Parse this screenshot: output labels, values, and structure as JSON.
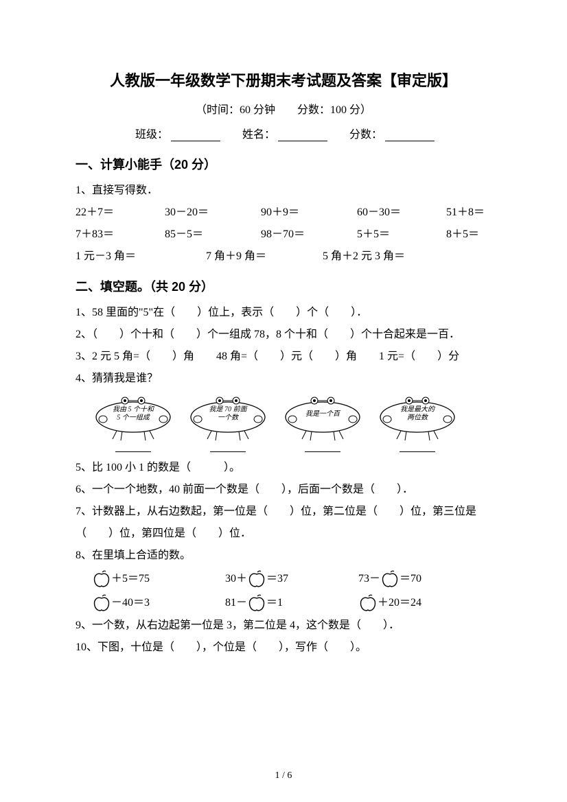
{
  "title": "人教版一年级数学下册期末考试题及答案【审定版】",
  "meta": "（时间：60 分钟　　分数：100 分）",
  "fields": {
    "class_label": "班级：",
    "name_label": "姓名：",
    "score_label": "分数："
  },
  "section1": {
    "header": "一、计算小能手（20 分）",
    "q1_label": "1、直接写得数．",
    "row1": [
      "22＋7＝",
      "30－20＝",
      "90＋9＝",
      "60－30＝",
      "51＋8＝"
    ],
    "row2": [
      "7＋83＝",
      "85－5＝",
      "98－70＝",
      "5＋5＝",
      "8＋5＝"
    ],
    "row3": [
      "1 元－3 角＝",
      "7 角＋9 角＝",
      "5 角＋2 元 3 角＝"
    ]
  },
  "section2": {
    "header": "二、填空题。（共 20 分）",
    "q1": "1、58 里面的\"5\"在（　　）位上，表示（　　）个（　　）．",
    "q2": "2、（　　）个十和（　　）个一组成 78，8 个十和（　　）个十合起来是一百．",
    "q3": "3、2 元 5 角=（　　）角　　48 角=（　　）元（　　）角　　1 元=（　　）分",
    "q4_label": "4、猜猜我是谁？",
    "bubbles": [
      "我由 5 个十和\n5 个一组成",
      "我是 70 前面\n一个数",
      "我是一个百",
      "我是最大的\n两位数"
    ],
    "q5": "5、比 100 小 1 的数是（　　　）。",
    "q6": "6、一个一个地数，40 前面一个数是（　　），后面一个数是（　　）．",
    "q7": "7、计数器上，从右边数起，第一位是（　　）位，第二位是（　　）位，第三位是（　　）位，第四位是（　　）位．",
    "q8_label": "8、在里填上合适的数。",
    "apple_row1": [
      {
        "pre": "",
        "mid": "＋5＝75"
      },
      {
        "pre": "30＋",
        "mid": "＝37"
      },
      {
        "pre": "73－",
        "mid": "＝70"
      }
    ],
    "apple_row2": [
      {
        "pre": "",
        "mid": "－40＝3"
      },
      {
        "pre": "81－",
        "mid": "＝1"
      },
      {
        "pre": "",
        "mid": "＋20＝24"
      }
    ],
    "q9": "9、一个数，从右边起第一位是 3，第二位是 4，这个数是（　　）．",
    "q10": "10、下图，十位是（　　），个位是（　　），写作（　　）。"
  },
  "page_num": "1 / 6",
  "colors": {
    "text": "#000000",
    "bg": "#ffffff"
  }
}
